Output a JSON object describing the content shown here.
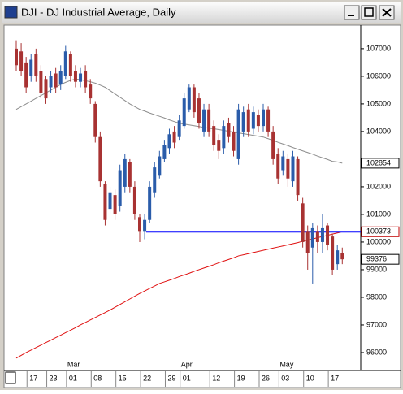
{
  "window_title": "DJI - DJ Industrial Average, Daily",
  "chart_data": {
    "type": "candlestick",
    "categories": [
      null,
      null,
      null,
      "17",
      null,
      null,
      null,
      "23",
      null,
      null,
      null,
      "01",
      null,
      null,
      null,
      null,
      "08",
      null,
      null,
      null,
      null,
      "15",
      null,
      null,
      null,
      null,
      "22",
      null,
      null,
      null,
      null,
      "29",
      null,
      null,
      "01",
      null,
      null,
      null,
      null,
      null,
      "12",
      null,
      null,
      null,
      null,
      "19",
      null,
      null,
      null,
      null,
      "26",
      null,
      null,
      null,
      "03",
      null,
      null,
      null,
      null,
      "10",
      null,
      null,
      null,
      null,
      "17",
      null,
      null
    ],
    "month_labels": [
      null,
      null,
      null,
      null,
      null,
      null,
      null,
      null,
      null,
      null,
      null,
      "Mar",
      null,
      null,
      null,
      null,
      null,
      null,
      null,
      null,
      null,
      null,
      null,
      null,
      null,
      null,
      null,
      null,
      null,
      null,
      null,
      null,
      null,
      null,
      "Apr",
      null,
      null,
      null,
      null,
      null,
      null,
      null,
      null,
      null,
      null,
      null,
      null,
      null,
      null,
      null,
      null,
      null,
      null,
      null,
      "May",
      null,
      null,
      null,
      null,
      null,
      null,
      null,
      null,
      null,
      null,
      null,
      null
    ],
    "open": [
      10700,
      10690,
      10650,
      10600,
      10680,
      10620,
      10590,
      10560,
      10610,
      10570,
      10600,
      10680,
      10620,
      10580,
      10620,
      10570,
      10500,
      10380,
      10210,
      10120,
      10170,
      10130,
      10200,
      10290,
      10200,
      10090,
      10040,
      10080,
      10180,
      10240,
      10300,
      10340,
      10400,
      10380,
      10420,
      10480,
      10560,
      10520,
      10400,
      10480,
      10420,
      10370,
      10340,
      10430,
      10400,
      10300,
      10400,
      10480,
      10410,
      10460,
      10420,
      10480,
      10400,
      10320,
      10260,
      10300,
      10220,
      10300,
      10140,
      10040,
      9980,
      10040,
      10000,
      10060,
      10020,
      9920,
      9960
    ],
    "high": [
      10730,
      10720,
      10670,
      10680,
      10700,
      10640,
      10600,
      10620,
      10630,
      10640,
      10710,
      10690,
      10640,
      10630,
      10640,
      10590,
      10510,
      10400,
      10220,
      10200,
      10190,
      10280,
      10320,
      10300,
      10220,
      10100,
      10100,
      10220,
      10290,
      10330,
      10370,
      10410,
      10420,
      10460,
      10540,
      10570,
      10570,
      10540,
      10500,
      10500,
      10440,
      10390,
      10440,
      10450,
      10420,
      10500,
      10490,
      10500,
      10490,
      10480,
      10500,
      10490,
      10420,
      10340,
      10330,
      10320,
      10330,
      10310,
      10160,
      10060,
      10070,
      10060,
      10100,
      10070,
      10030,
      9990,
      9980
    ],
    "low": [
      10620,
      10600,
      10540,
      10580,
      10580,
      10520,
      10500,
      10540,
      10540,
      10550,
      10590,
      10580,
      10560,
      10560,
      10540,
      10500,
      10360,
      10200,
      10060,
      10100,
      10080,
      10110,
      10180,
      10180,
      10080,
      10000,
      10010,
      10070,
      10160,
      10230,
      10290,
      10320,
      10340,
      10370,
      10410,
      10470,
      10450,
      10410,
      10380,
      10380,
      10330,
      10300,
      10320,
      10360,
      10310,
      10280,
      10380,
      10380,
      10390,
      10400,
      10400,
      10380,
      10280,
      10210,
      10240,
      10200,
      10200,
      10150,
      9980,
      9900,
      9850,
      9960,
      9960,
      9970,
      9880,
      9900,
      9920
    ],
    "close": [
      10640,
      10620,
      10560,
      10660,
      10600,
      10540,
      10520,
      10600,
      10560,
      10620,
      10690,
      10600,
      10580,
      10610,
      10560,
      10520,
      10380,
      10220,
      10080,
      10180,
      10100,
      10260,
      10300,
      10200,
      10100,
      10040,
      10080,
      10200,
      10270,
      10310,
      10350,
      10390,
      10360,
      10440,
      10520,
      10560,
      10470,
      10430,
      10480,
      10400,
      10350,
      10330,
      10420,
      10380,
      10330,
      10480,
      10470,
      10400,
      10470,
      10420,
      10480,
      10400,
      10300,
      10230,
      10310,
      10230,
      10310,
      10170,
      10000,
      9960,
      10050,
      10000,
      10050,
      9990,
      9900,
      9970,
      9937.6
    ],
    "up_color": "#2a5caa",
    "down_color": "#a83232",
    "last_close_label": "99376",
    "lines": [
      {
        "color": "#8c8c8c",
        "end_label": "102854",
        "values": [
          10480,
          10490,
          10500,
          10510,
          10520,
          10530,
          10540,
          10550,
          10560,
          10570,
          10578,
          10585,
          10590,
          10588,
          10584,
          10580,
          10575,
          10568,
          10560,
          10548,
          10536,
          10524,
          10512,
          10500,
          10490,
          10480,
          10474,
          10467,
          10461,
          10455,
          10449,
          10442,
          10436,
          10430,
          10427,
          10424,
          10421,
          10418,
          10415,
          10412,
          10410,
          10407,
          10404,
          10401,
          10398,
          10395,
          10392,
          10389,
          10386,
          10383,
          10380,
          10374,
          10368,
          10361,
          10355,
          10349,
          10342,
          10336,
          10330,
          10324,
          10318,
          10311,
          10305,
          10299,
          10292,
          10290,
          10285.4
        ]
      },
      {
        "color": "#e01010",
        "values": [
          9580,
          9590,
          9600,
          9609,
          9618,
          9627,
          9636,
          9645,
          9654,
          9663,
          9672,
          9681,
          9690,
          9700,
          9709,
          9718,
          9727,
          9736,
          9745,
          9754,
          9764,
          9774,
          9784,
          9794,
          9804,
          9814,
          9823,
          9832,
          9841,
          9850,
          9856,
          9862,
          9868,
          9875,
          9881,
          9887,
          9894,
          9900,
          9906,
          9912,
          9918,
          9925,
          9931,
          9937,
          9943,
          9950,
          9954,
          9958,
          9962,
          9966,
          9970,
          9974,
          9978,
          9982,
          9986,
          9990,
          9994,
          9998,
          10003,
          10007,
          10011,
          10016,
          10020,
          10024,
          10029,
          10033,
          10037.3
        ]
      }
    ],
    "hline": {
      "value": 10037.3,
      "label": "100373",
      "color": "#0000ff"
    },
    "ylim": [
      9547,
      10782
    ],
    "yticks": [
      {
        "value": 9600,
        "label": "96000"
      },
      {
        "value": 9700,
        "label": "97000"
      },
      {
        "value": 9800,
        "label": "98000"
      },
      {
        "value": 9900,
        "label": "99000"
      },
      {
        "value": 10000,
        "label": "100000"
      },
      {
        "value": 10100,
        "label": "101000"
      },
      {
        "value": 10200,
        "label": "102000"
      },
      {
        "value": 10400,
        "label": "104000"
      },
      {
        "value": 10500,
        "label": "105000"
      },
      {
        "value": 10600,
        "label": "106000"
      },
      {
        "value": 10700,
        "label": "107000"
      }
    ]
  }
}
